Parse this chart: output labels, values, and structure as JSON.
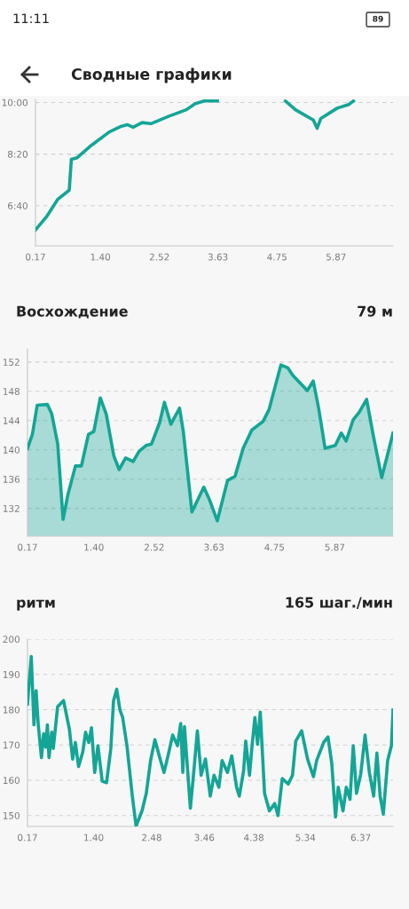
{
  "chart_data": [
    {
      "type": "line",
      "annotations": [
        "11:11",
        "89",
        "Сводные графики"
      ],
      "xlim": [
        0.17,
        6.95
      ],
      "ylim": [
        322,
        606
      ],
      "xticks": [
        {
          "value": 0.17,
          "label": "0.17"
        },
        {
          "value": 1.4,
          "label": "1.40"
        },
        {
          "value": 2.52,
          "label": "2.52"
        },
        {
          "value": 3.63,
          "label": "3.63"
        },
        {
          "value": 4.75,
          "label": "4.75"
        },
        {
          "value": 5.87,
          "label": "5.87"
        }
      ],
      "yticks": [
        {
          "value": 400,
          "label": "6:40"
        },
        {
          "value": 500,
          "label": "8:20"
        },
        {
          "value": 600,
          "label": "10:00"
        }
      ],
      "grid": "y",
      "series": [
        {
          "color": "#14a596",
          "x": [
            0.17,
            0.39,
            0.59,
            0.81,
            0.85,
            0.96,
            1.23,
            1.57,
            1.8,
            1.91,
            2.02,
            2.19,
            2.36,
            2.69,
            3.03,
            3.2,
            3.37,
            3.62,
            4.2,
            4.91,
            5.1,
            5.44,
            5.51,
            5.58,
            5.89,
            6.11,
            6.2
          ],
          "values": [
            353,
            380,
            412,
            430,
            490,
            493,
            517,
            543,
            554,
            557,
            552,
            561,
            559,
            573,
            586,
            598,
            603,
            603,
            null,
            603,
            586,
            566,
            550,
            569,
            589,
            596,
            603
          ]
        }
      ]
    },
    {
      "type": "area",
      "title": "Восхождение",
      "annotations": [
        "79 м"
      ],
      "xlim": [
        0.17,
        6.95
      ],
      "ylim": [
        128.2,
        153.8
      ],
      "xticks": [
        {
          "value": 0.17,
          "label": "0.17"
        },
        {
          "value": 1.4,
          "label": "1.40"
        },
        {
          "value": 2.52,
          "label": "2.52"
        },
        {
          "value": 3.63,
          "label": "3.63"
        },
        {
          "value": 4.75,
          "label": "4.75"
        },
        {
          "value": 5.87,
          "label": "5.87"
        }
      ],
      "yticks": [
        132,
        136,
        140,
        144,
        148,
        152
      ],
      "grid": "y",
      "series": [
        {
          "color": "#14a596",
          "x": [
            0.17,
            0.26,
            0.35,
            0.54,
            0.62,
            0.73,
            0.83,
            0.92,
            1.06,
            1.17,
            1.3,
            1.4,
            1.52,
            1.63,
            1.77,
            1.87,
            1.99,
            2.13,
            2.24,
            2.37,
            2.47,
            2.62,
            2.71,
            2.83,
            2.99,
            3.06,
            3.22,
            3.44,
            3.55,
            3.69,
            3.88,
            4.02,
            4.17,
            4.33,
            4.54,
            4.65,
            4.87,
            5.0,
            5.09,
            5.36,
            5.47,
            5.57,
            5.69,
            5.88,
            5.99,
            6.08,
            6.21,
            6.32,
            6.46,
            6.58,
            6.74,
            6.95
          ],
          "values": [
            140.2,
            142.1,
            146.1,
            146.2,
            144.9,
            140.8,
            130.5,
            133.9,
            137.8,
            137.8,
            142.1,
            142.5,
            147.1,
            144.9,
            139.2,
            137.3,
            138.9,
            138.4,
            139.8,
            140.6,
            140.8,
            143.7,
            146.5,
            143.5,
            145.7,
            142.5,
            131.5,
            134.9,
            133.1,
            130.3,
            135.8,
            136.4,
            140.2,
            142.7,
            143.9,
            145.5,
            151.6,
            151.2,
            150.2,
            148.1,
            149.4,
            145.7,
            140.2,
            140.6,
            142.3,
            141.2,
            144.1,
            145.1,
            146.9,
            142.1,
            136.2,
            142.3
          ]
        }
      ]
    },
    {
      "type": "line",
      "title": "ритм",
      "annotations": [
        "165 шаг./мин"
      ],
      "xlim": [
        0.17,
        6.97
      ],
      "ylim": [
        146.9,
        200
      ],
      "xticks": [
        {
          "value": 0.17,
          "label": "0.17"
        },
        {
          "value": 1.4,
          "label": "1.40"
        },
        {
          "value": 2.48,
          "label": "2.48"
        },
        {
          "value": 3.46,
          "label": "3.46"
        },
        {
          "value": 4.38,
          "label": "4.38"
        },
        {
          "value": 5.34,
          "label": "5.34"
        },
        {
          "value": 6.37,
          "label": "6.37"
        }
      ],
      "yticks": [
        150,
        160,
        170,
        180,
        190,
        200
      ],
      "grid": "y",
      "series": [
        {
          "color": "#14a596",
          "x": [
            0.17,
            0.24,
            0.29,
            0.33,
            0.37,
            0.43,
            0.47,
            0.51,
            0.54,
            0.57,
            0.62,
            0.65,
            0.73,
            0.84,
            0.95,
            1.01,
            1.06,
            1.12,
            1.2,
            1.25,
            1.31,
            1.36,
            1.42,
            1.48,
            1.56,
            1.64,
            1.72,
            1.77,
            1.83,
            1.89,
            1.94,
            2.02,
            2.12,
            2.19,
            2.3,
            2.38,
            2.46,
            2.54,
            2.63,
            2.71,
            2.79,
            2.87,
            2.96,
            3.02,
            3.06,
            3.09,
            3.2,
            3.26,
            3.33,
            3.4,
            3.48,
            3.57,
            3.64,
            3.73,
            3.79,
            3.89,
            3.97,
            4.06,
            4.11,
            4.19,
            4.23,
            4.3,
            4.34,
            4.4,
            4.45,
            4.5,
            4.58,
            4.67,
            4.77,
            4.83,
            4.91,
            5.02,
            5.1,
            5.16,
            5.27,
            5.38,
            5.49,
            5.55,
            5.68,
            5.76,
            5.83,
            5.9,
            5.95,
            6.04,
            6.1,
            6.17,
            6.23,
            6.29,
            6.37,
            6.45,
            6.53,
            6.61,
            6.67,
            6.73,
            6.79,
            6.87,
            6.94,
            6.97
          ],
          "values": [
            181.6,
            195.1,
            175.7,
            185.4,
            175.7,
            166.4,
            173.2,
            169.4,
            175.7,
            166.4,
            173.6,
            169.0,
            180.8,
            182.6,
            174.4,
            166.0,
            170.7,
            163.9,
            168.1,
            173.6,
            170.7,
            174.9,
            162.2,
            169.8,
            159.7,
            159.3,
            169.0,
            182.5,
            185.8,
            179.9,
            177.8,
            169.8,
            155.5,
            147.0,
            151.3,
            156.3,
            165.6,
            171.5,
            166.4,
            162.2,
            167.3,
            172.8,
            169.8,
            176.1,
            162.2,
            175.2,
            152.1,
            161.8,
            174.0,
            161.4,
            166.0,
            155.5,
            161.4,
            158.0,
            165.6,
            162.2,
            166.9,
            158.0,
            155.5,
            162.6,
            171.1,
            161.4,
            168.5,
            177.8,
            170.2,
            179.3,
            156.3,
            151.3,
            153.4,
            150.0,
            160.5,
            158.9,
            161.4,
            171.1,
            174.0,
            166.0,
            161.0,
            165.6,
            170.7,
            172.3,
            164.8,
            149.6,
            158.0,
            151.3,
            158.0,
            154.6,
            169.8,
            156.3,
            161.8,
            172.8,
            162.2,
            155.5,
            167.7,
            155.5,
            150.4,
            165.6,
            169.8,
            179.9
          ]
        }
      ]
    }
  ]
}
